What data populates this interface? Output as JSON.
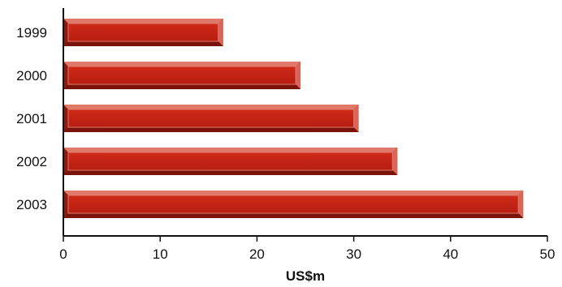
{
  "chart_data": {
    "type": "bar",
    "orientation": "horizontal",
    "categories": [
      "1999",
      "2000",
      "2001",
      "2002",
      "2003"
    ],
    "values": [
      16.5,
      24.5,
      30.5,
      34.5,
      47.5
    ],
    "xlabel": "US$m",
    "ylabel": "",
    "xlim": [
      0,
      50
    ],
    "xticks": [
      "0",
      "10",
      "20",
      "30",
      "40",
      "50"
    ],
    "grid": false,
    "legend": "none"
  },
  "colors": {
    "bar_face": "#c42314",
    "bar_light": "#e0796a",
    "bar_dark": "#7a140b",
    "axis": "#111111"
  }
}
